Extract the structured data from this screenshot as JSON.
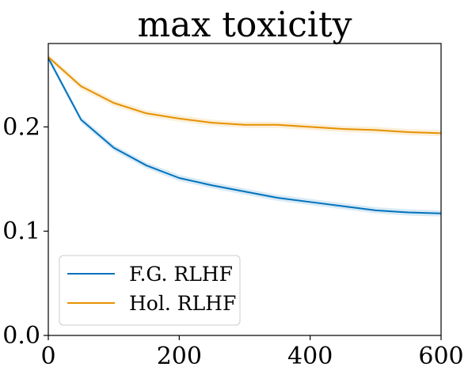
{
  "chart_data": {
    "type": "line",
    "title": "max toxicity",
    "xlabel": "",
    "ylabel": "",
    "xlim": [
      0,
      600
    ],
    "ylim": [
      0,
      0.28
    ],
    "x_ticks": [
      0,
      200,
      400,
      600
    ],
    "x_tick_labels": [
      "0",
      "200",
      "400",
      "600"
    ],
    "y_ticks": [
      0.0,
      0.1,
      0.2
    ],
    "y_tick_labels": [
      "0.0",
      "0.1",
      "0.2"
    ],
    "grid": false,
    "legend_position": "lower-left",
    "x": [
      0,
      50,
      100,
      150,
      200,
      250,
      300,
      350,
      400,
      450,
      500,
      550,
      600
    ],
    "series": [
      {
        "name": "F.G. RLHF",
        "color": "#0072bd",
        "values": [
          0.266,
          0.207,
          0.18,
          0.163,
          0.151,
          0.144,
          0.138,
          0.132,
          0.128,
          0.124,
          0.12,
          0.118,
          0.117
        ],
        "band": 0.003
      },
      {
        "name": "Hol. RLHF",
        "color": "#e69100",
        "values": [
          0.267,
          0.239,
          0.223,
          0.213,
          0.208,
          0.204,
          0.202,
          0.202,
          0.2,
          0.198,
          0.197,
          0.195,
          0.194
        ],
        "band": 0.003
      }
    ]
  }
}
